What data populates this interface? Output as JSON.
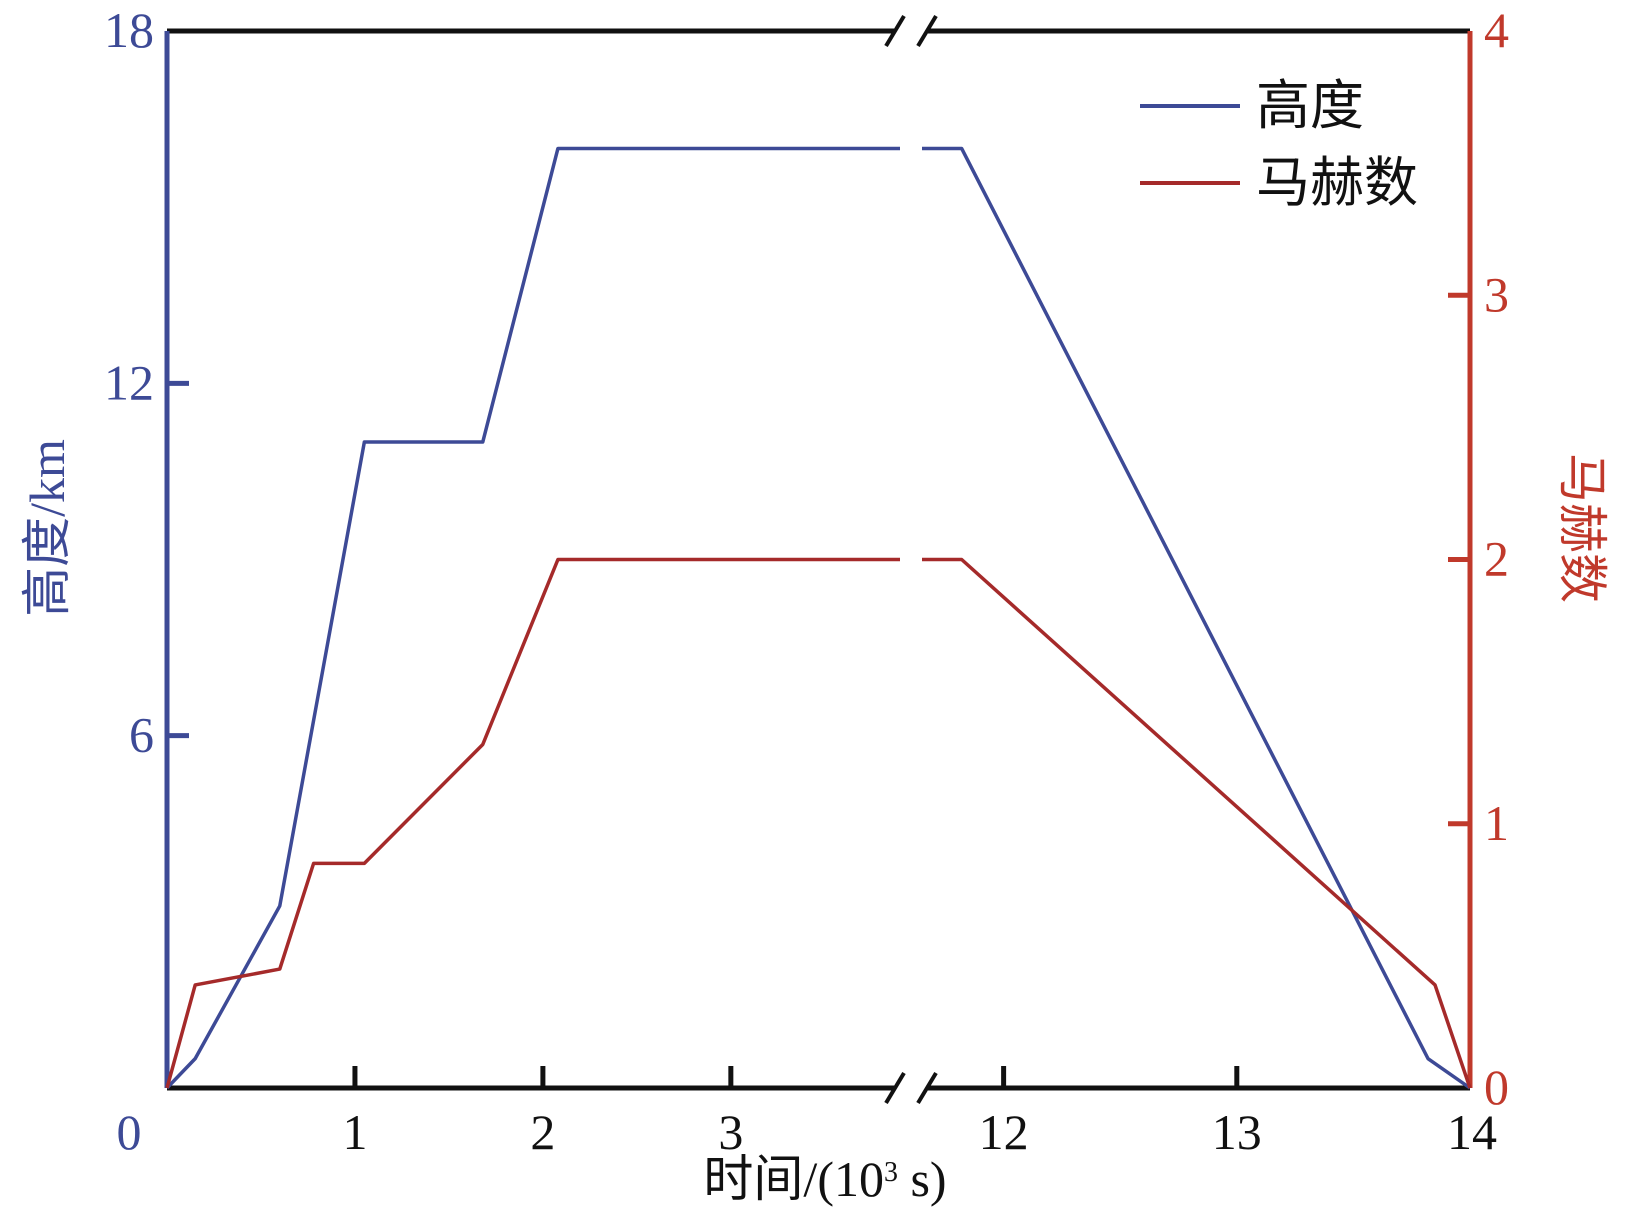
{
  "chart_data": {
    "type": "line",
    "xlabel": "时间/(10³ s)",
    "xlabel_parts": {
      "prefix": "时间/(10",
      "sup": "3",
      "suffix": " s)"
    },
    "ylabel_left": "高度/km",
    "ylabel_right": "马赫数",
    "x_broken_axis": true,
    "x_segments": [
      {
        "range": [
          0,
          3.9
        ]
      },
      {
        "range": [
          11.65,
          14
        ]
      }
    ],
    "x_ticks": [
      {
        "value": 0,
        "label": "0"
      },
      {
        "value": 1,
        "label": "1"
      },
      {
        "value": 2,
        "label": "2"
      },
      {
        "value": 3,
        "label": "3"
      },
      {
        "value": 12,
        "label": "12"
      },
      {
        "value": 13,
        "label": "13"
      },
      {
        "value": 14,
        "label": "14"
      }
    ],
    "y_left": {
      "range": [
        0,
        18
      ],
      "ticks": [
        "0",
        "6",
        "12",
        "18"
      ],
      "tick_values": [
        0,
        6,
        12,
        18
      ],
      "color": "#3d4a96"
    },
    "y_right": {
      "range": [
        0,
        4
      ],
      "ticks": [
        "0",
        "1",
        "2",
        "3",
        "4"
      ],
      "tick_values": [
        0,
        1,
        2,
        3,
        4
      ],
      "color": "#c0392b"
    },
    "legend_position": "top-right",
    "grid": false,
    "series": [
      {
        "name": "高度",
        "axis": "left",
        "color": "#3d4a96",
        "points": [
          [
            0,
            0
          ],
          [
            0.15,
            0.5
          ],
          [
            0.6,
            3.1
          ],
          [
            1.05,
            11
          ],
          [
            1.68,
            11
          ],
          [
            2.08,
            16
          ],
          [
            3.9,
            16
          ],
          [
            11.65,
            16
          ],
          [
            11.82,
            16
          ],
          [
            13.82,
            0.5
          ],
          [
            14,
            0
          ]
        ]
      },
      {
        "name": "马赫数",
        "axis": "right",
        "color": "#a52a2a",
        "points": [
          [
            0,
            0
          ],
          [
            0.15,
            0.39
          ],
          [
            0.6,
            0.45
          ],
          [
            0.78,
            0.85
          ],
          [
            1.05,
            0.85
          ],
          [
            1.68,
            1.3
          ],
          [
            2.08,
            2
          ],
          [
            3.9,
            2
          ],
          [
            11.65,
            2
          ],
          [
            11.82,
            2
          ],
          [
            13.85,
            0.39
          ],
          [
            14,
            0
          ]
        ]
      }
    ]
  }
}
